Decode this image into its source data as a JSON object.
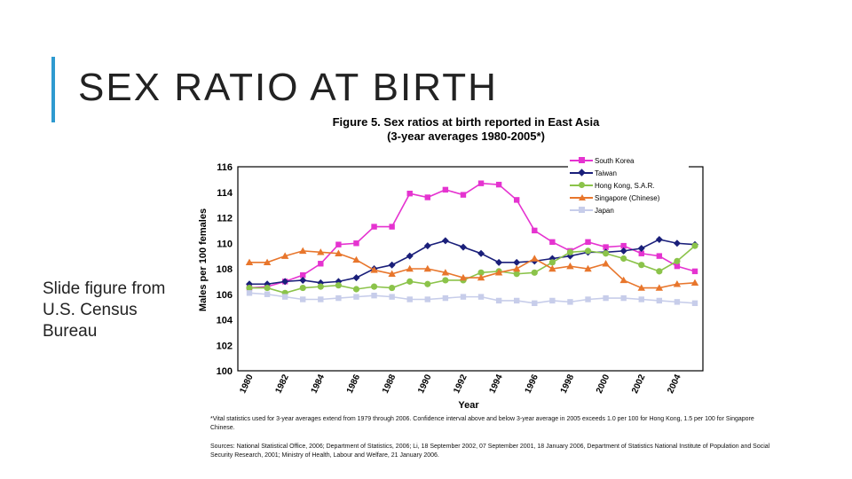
{
  "slide": {
    "title": "SEX RATIO AT BIRTH",
    "caption": "Slide figure from U.S. Census Bureau",
    "accent_color": "#2e9ad0"
  },
  "figure": {
    "title_line1": "Figure 5.  Sex ratios at birth reported in East Asia",
    "title_line2": "(3-year averages 1980-2005*)",
    "footnote": "*Vital statistics used for 3-year averages extend from 1979 through 2006. Confidence interval above and below 3-year average in 2005 exceeds 1.0 per 100 for Hong Kong, 1.5 per 100 for Singapore Chinese.",
    "sources": "Sources:  National Statistical Office, 2006; Department of Statistics, 2006; Li, 18 September 2002, 07 September 2001, 18 January 2006, Department of Statistics National Institute of Population and Social Security Research, 2001; Ministry of Health, Labour and Welfare, 21 January 2006."
  },
  "chart_data": {
    "type": "line",
    "title": "Figure 5.  Sex ratios at birth reported in East Asia",
    "subtitle": "(3-year averages 1980-2005*)",
    "xlabel": "Year",
    "ylabel": "Males per 100 females",
    "ylim": [
      100,
      116
    ],
    "yticks": [
      "100",
      "102",
      "104",
      "106",
      "108",
      "110",
      "112",
      "114",
      "116"
    ],
    "xtick_labels": [
      "1980",
      "1982",
      "1984",
      "1986",
      "1988",
      "1990",
      "1992",
      "1994",
      "1996",
      "1998",
      "2000",
      "2002",
      "2004"
    ],
    "x": [
      1980,
      1981,
      1982,
      1983,
      1984,
      1985,
      1986,
      1987,
      1988,
      1989,
      1990,
      1991,
      1992,
      1993,
      1994,
      1995,
      1996,
      1997,
      1998,
      1999,
      2000,
      2001,
      2002,
      2003,
      2004,
      2005
    ],
    "legend_position": "top-right",
    "grid": false,
    "series": [
      {
        "name": "South Korea",
        "color": "#e533d0",
        "marker": "square",
        "values": [
          106.5,
          106.6,
          107.0,
          107.5,
          108.4,
          109.9,
          110.0,
          111.3,
          111.3,
          113.9,
          113.6,
          114.2,
          113.8,
          114.7,
          114.6,
          113.4,
          111.0,
          110.1,
          109.4,
          110.1,
          109.7,
          109.8,
          109.2,
          109.0,
          108.2,
          107.8
        ]
      },
      {
        "name": "Taiwan",
        "color": "#1a1f7a",
        "marker": "diamond",
        "values": [
          106.8,
          106.8,
          107.0,
          107.1,
          106.9,
          107.0,
          107.3,
          108.0,
          108.3,
          109.0,
          109.8,
          110.2,
          109.7,
          109.2,
          108.5,
          108.5,
          108.6,
          108.8,
          109.0,
          109.3,
          109.3,
          109.4,
          109.6,
          110.3,
          110.0,
          109.9
        ]
      },
      {
        "name": "Hong Kong, S.A.R.",
        "color": "#8bc34a",
        "marker": "circle",
        "values": [
          106.5,
          106.5,
          106.1,
          106.5,
          106.6,
          106.7,
          106.4,
          106.6,
          106.5,
          107.0,
          106.8,
          107.1,
          107.1,
          107.7,
          107.8,
          107.6,
          107.7,
          108.5,
          109.3,
          109.4,
          109.2,
          108.8,
          108.3,
          107.8,
          108.6,
          109.8
        ]
      },
      {
        "name": "Singapore (Chinese)",
        "color": "#e8762c",
        "marker": "triangle",
        "values": [
          108.5,
          108.5,
          109.0,
          109.4,
          109.3,
          109.2,
          108.7,
          107.9,
          107.6,
          108.0,
          108.0,
          107.7,
          107.3,
          107.3,
          107.7,
          108.0,
          108.8,
          108.0,
          108.2,
          108.0,
          108.4,
          107.1,
          106.5,
          106.5,
          106.8,
          106.9
        ]
      },
      {
        "name": "Japan",
        "color": "#c7cdea",
        "marker": "square",
        "values": [
          106.1,
          106.0,
          105.8,
          105.6,
          105.6,
          105.7,
          105.8,
          105.9,
          105.8,
          105.6,
          105.6,
          105.7,
          105.8,
          105.8,
          105.5,
          105.5,
          105.3,
          105.5,
          105.4,
          105.6,
          105.7,
          105.7,
          105.6,
          105.5,
          105.4,
          105.3
        ]
      }
    ]
  }
}
